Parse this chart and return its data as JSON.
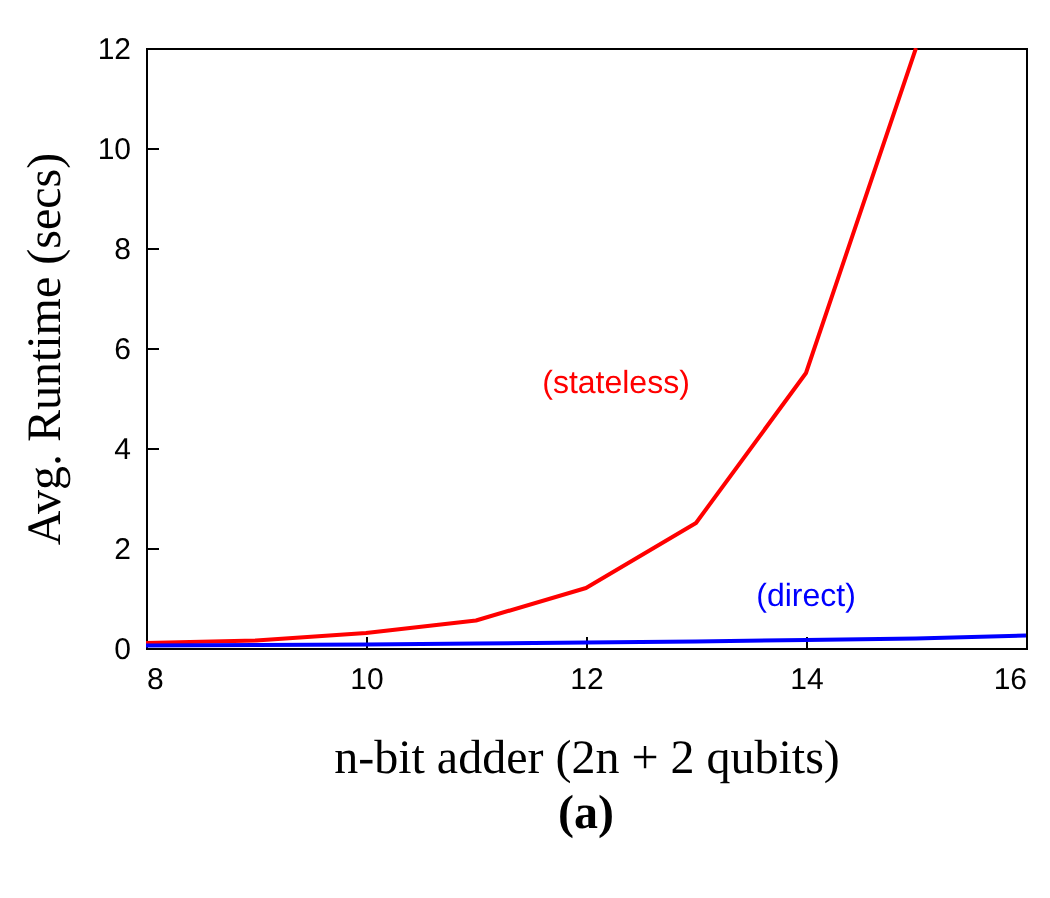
{
  "chart_data": {
    "type": "line",
    "title": "(a)",
    "xlabel": "n-bit adder (2n + 2 qubits)",
    "ylabel": "Avg. Runtime (secs)",
    "x": [
      8,
      9,
      10,
      11,
      12,
      13,
      14,
      15,
      16
    ],
    "series": [
      {
        "name": "(stateless)",
        "color": "#ff0000",
        "values": [
          0.1,
          0.15,
          0.3,
          0.55,
          1.2,
          2.5,
          5.5,
          12,
          null
        ]
      },
      {
        "name": "(direct)",
        "color": "#0000ff",
        "values": [
          0.05,
          0.06,
          0.07,
          0.09,
          0.11,
          0.13,
          0.16,
          0.19,
          0.25
        ]
      }
    ],
    "xlim": [
      8,
      16
    ],
    "xticks": [
      8,
      10,
      12,
      14,
      16
    ],
    "ylim": [
      0,
      12
    ],
    "yticks": [
      0,
      2,
      4,
      6,
      8,
      10,
      12
    ],
    "grid": false,
    "legend": false,
    "marker": "none",
    "line_style": "solid"
  }
}
